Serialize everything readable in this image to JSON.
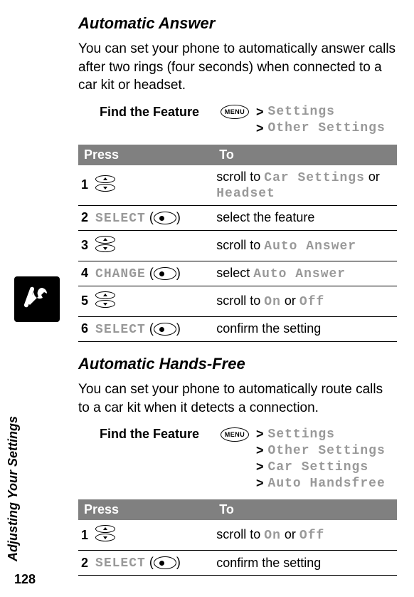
{
  "sidebar_label": "Adjusting Your Settings",
  "page_number": "128",
  "menu_icon_label": "MENU",
  "sections": {
    "auto_answer": {
      "title": "Automatic Answer",
      "body": "You can set your phone to automatically answer calls after two rings (four seconds) when connected to a car kit or headset.",
      "find_label": "Find the Feature",
      "path": [
        "Settings",
        "Other Settings"
      ],
      "table_header_press": "Press",
      "table_header_to": "To",
      "rows": [
        {
          "n": "1",
          "press_type": "scroll",
          "press_label": "",
          "to_pre": "scroll to ",
          "to_code1": "Car Settings",
          "to_mid": " or ",
          "to_code2": "Headset",
          "to_post": ""
        },
        {
          "n": "2",
          "press_type": "soft",
          "press_label": "SELECT",
          "to_pre": "select the feature",
          "to_code1": "",
          "to_mid": "",
          "to_code2": "",
          "to_post": ""
        },
        {
          "n": "3",
          "press_type": "scroll",
          "press_label": "",
          "to_pre": "scroll to ",
          "to_code1": "Auto Answer",
          "to_mid": "",
          "to_code2": "",
          "to_post": ""
        },
        {
          "n": "4",
          "press_type": "soft",
          "press_label": "CHANGE",
          "to_pre": "select ",
          "to_code1": "Auto Answer",
          "to_mid": "",
          "to_code2": "",
          "to_post": ""
        },
        {
          "n": "5",
          "press_type": "scroll",
          "press_label": "",
          "to_pre": "scroll to ",
          "to_code1": "On",
          "to_mid": " or ",
          "to_code2": "Off",
          "to_post": ""
        },
        {
          "n": "6",
          "press_type": "soft",
          "press_label": "SELECT",
          "to_pre": "confirm the setting",
          "to_code1": "",
          "to_mid": "",
          "to_code2": "",
          "to_post": ""
        }
      ]
    },
    "auto_hf": {
      "title": "Automatic Hands-Free",
      "body": "You can set your phone to automatically route calls to a car kit when it detects a connection.",
      "find_label": "Find the Feature",
      "path": [
        "Settings",
        "Other Settings",
        "Car Settings",
        "Auto Handsfree"
      ],
      "table_header_press": "Press",
      "table_header_to": "To",
      "rows": [
        {
          "n": "1",
          "press_type": "scroll",
          "press_label": "",
          "to_pre": "scroll to ",
          "to_code1": "On",
          "to_mid": " or ",
          "to_code2": "Off",
          "to_post": ""
        },
        {
          "n": "2",
          "press_type": "soft",
          "press_label": "SELECT",
          "to_pre": "confirm the setting",
          "to_code1": "",
          "to_mid": "",
          "to_code2": "",
          "to_post": ""
        }
      ]
    }
  },
  "gt": ">"
}
